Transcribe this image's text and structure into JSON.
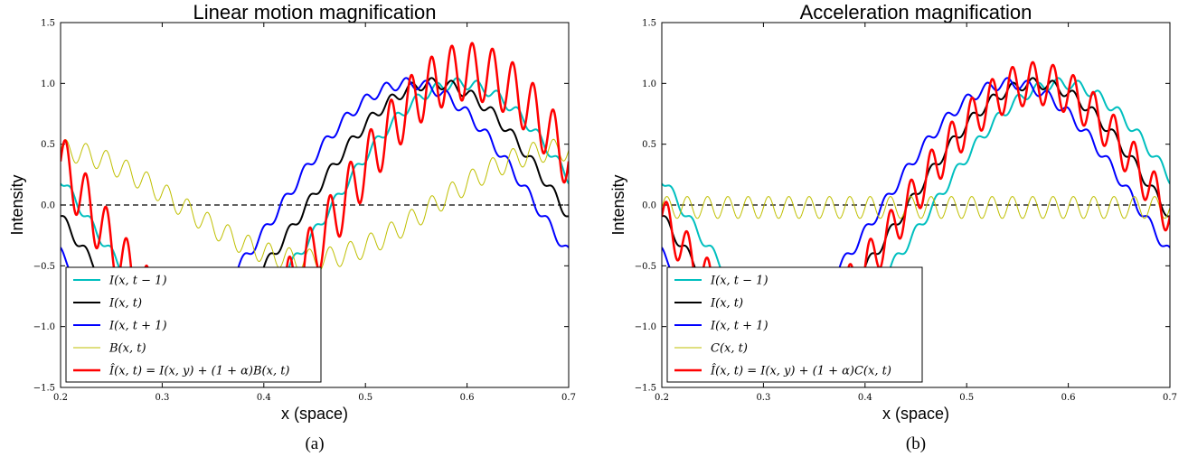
{
  "chart_data": [
    {
      "type": "line",
      "title": "Linear motion magnification",
      "xlabel": "x (space)",
      "ylabel": "Intensity",
      "caption": "(a)",
      "xlim": [
        0.2,
        0.7
      ],
      "ylim": [
        -1.5,
        1.5
      ],
      "xticks": [
        0.2,
        0.3,
        0.4,
        0.5,
        0.6,
        0.7
      ],
      "xtick_labels": [
        "0.2",
        "0.3",
        "0.4",
        "0.5",
        "0.6",
        "0.7"
      ],
      "yticks": [
        -1.5,
        -1.0,
        -0.5,
        0.0,
        0.5,
        1.0,
        1.5
      ],
      "ytick_labels": [
        "−1.5",
        "−1.0",
        "−0.5",
        "0.0",
        "0.5",
        "1.0",
        "1.5"
      ],
      "reference_line": {
        "y": 0.0,
        "style": "dashed",
        "color": "#000000"
      },
      "legend_position": "lower-left",
      "wave": {
        "low_amplitude": 1.0,
        "low_frequency": 2.0,
        "low_phase": 0.72,
        "ripple_amplitude": 0.045,
        "ripple_frequency": 50
      },
      "series": [
        {
          "name": "I(x, t − 1)",
          "color": "#00bfbf",
          "width": 2,
          "shift": -0.025,
          "alpha": 0,
          "extra": "none"
        },
        {
          "name": "I(x, t)",
          "color": "#000000",
          "width": 2,
          "shift": 0.0,
          "alpha": 0,
          "extra": "none"
        },
        {
          "name": "I(x, t + 1)",
          "color": "#0000ff",
          "width": 2,
          "shift": 0.025,
          "alpha": 0,
          "extra": "none"
        },
        {
          "name": "B(x, t)",
          "color": "#bfbf00",
          "width": 1,
          "component": "B",
          "slope_scale": 1.6,
          "wave_scale": 0.09
        },
        {
          "name": "Î(x, t) = I(x, y) + (1 + α)B(x, t)",
          "color": "#ff0000",
          "width": 2.5,
          "shift": 0.0,
          "extra": "B",
          "alpha": 1.0,
          "ripple_boost": 0.19
        }
      ]
    },
    {
      "type": "line",
      "title": "Acceleration magnification",
      "xlabel": "x (space)",
      "ylabel": "Intensity",
      "caption": "(b)",
      "xlim": [
        0.2,
        0.7
      ],
      "ylim": [
        -1.5,
        1.5
      ],
      "xticks": [
        0.2,
        0.3,
        0.4,
        0.5,
        0.6,
        0.7
      ],
      "xtick_labels": [
        "0.2",
        "0.3",
        "0.4",
        "0.5",
        "0.6",
        "0.7"
      ],
      "yticks": [
        -1.5,
        -1.0,
        -0.5,
        0.0,
        0.5,
        1.0,
        1.5
      ],
      "ytick_labels": [
        "−1.5",
        "−1.0",
        "−0.5",
        "0.0",
        "0.5",
        "1.0",
        "1.5"
      ],
      "reference_line": {
        "y": 0.0,
        "style": "dashed",
        "color": "#000000"
      },
      "legend_position": "lower-left",
      "wave": {
        "low_amplitude": 1.0,
        "low_frequency": 2.0,
        "low_phase": 0.72,
        "ripple_amplitude": 0.045,
        "ripple_frequency": 50
      },
      "series": [
        {
          "name": "I(x, t − 1)",
          "color": "#00bfbf",
          "width": 2,
          "shift": -0.025,
          "alpha": 0,
          "extra": "none"
        },
        {
          "name": "I(x, t)",
          "color": "#000000",
          "width": 2,
          "shift": 0.0,
          "alpha": 0,
          "extra": "none"
        },
        {
          "name": "I(x, t + 1)",
          "color": "#0000ff",
          "width": 2,
          "shift": 0.025,
          "alpha": 0,
          "extra": "none"
        },
        {
          "name": "C(x, t)",
          "color": "#bfbf00",
          "width": 1,
          "component": "C",
          "wave_scale": 0.09
        },
        {
          "name": "Î(x, t) = I(x, y) + (1 + α)C(x, t)",
          "color": "#ff0000",
          "width": 2.5,
          "shift": 0.0,
          "extra": "C",
          "alpha": 1.0,
          "ripple_boost": 0.13
        }
      ]
    }
  ]
}
